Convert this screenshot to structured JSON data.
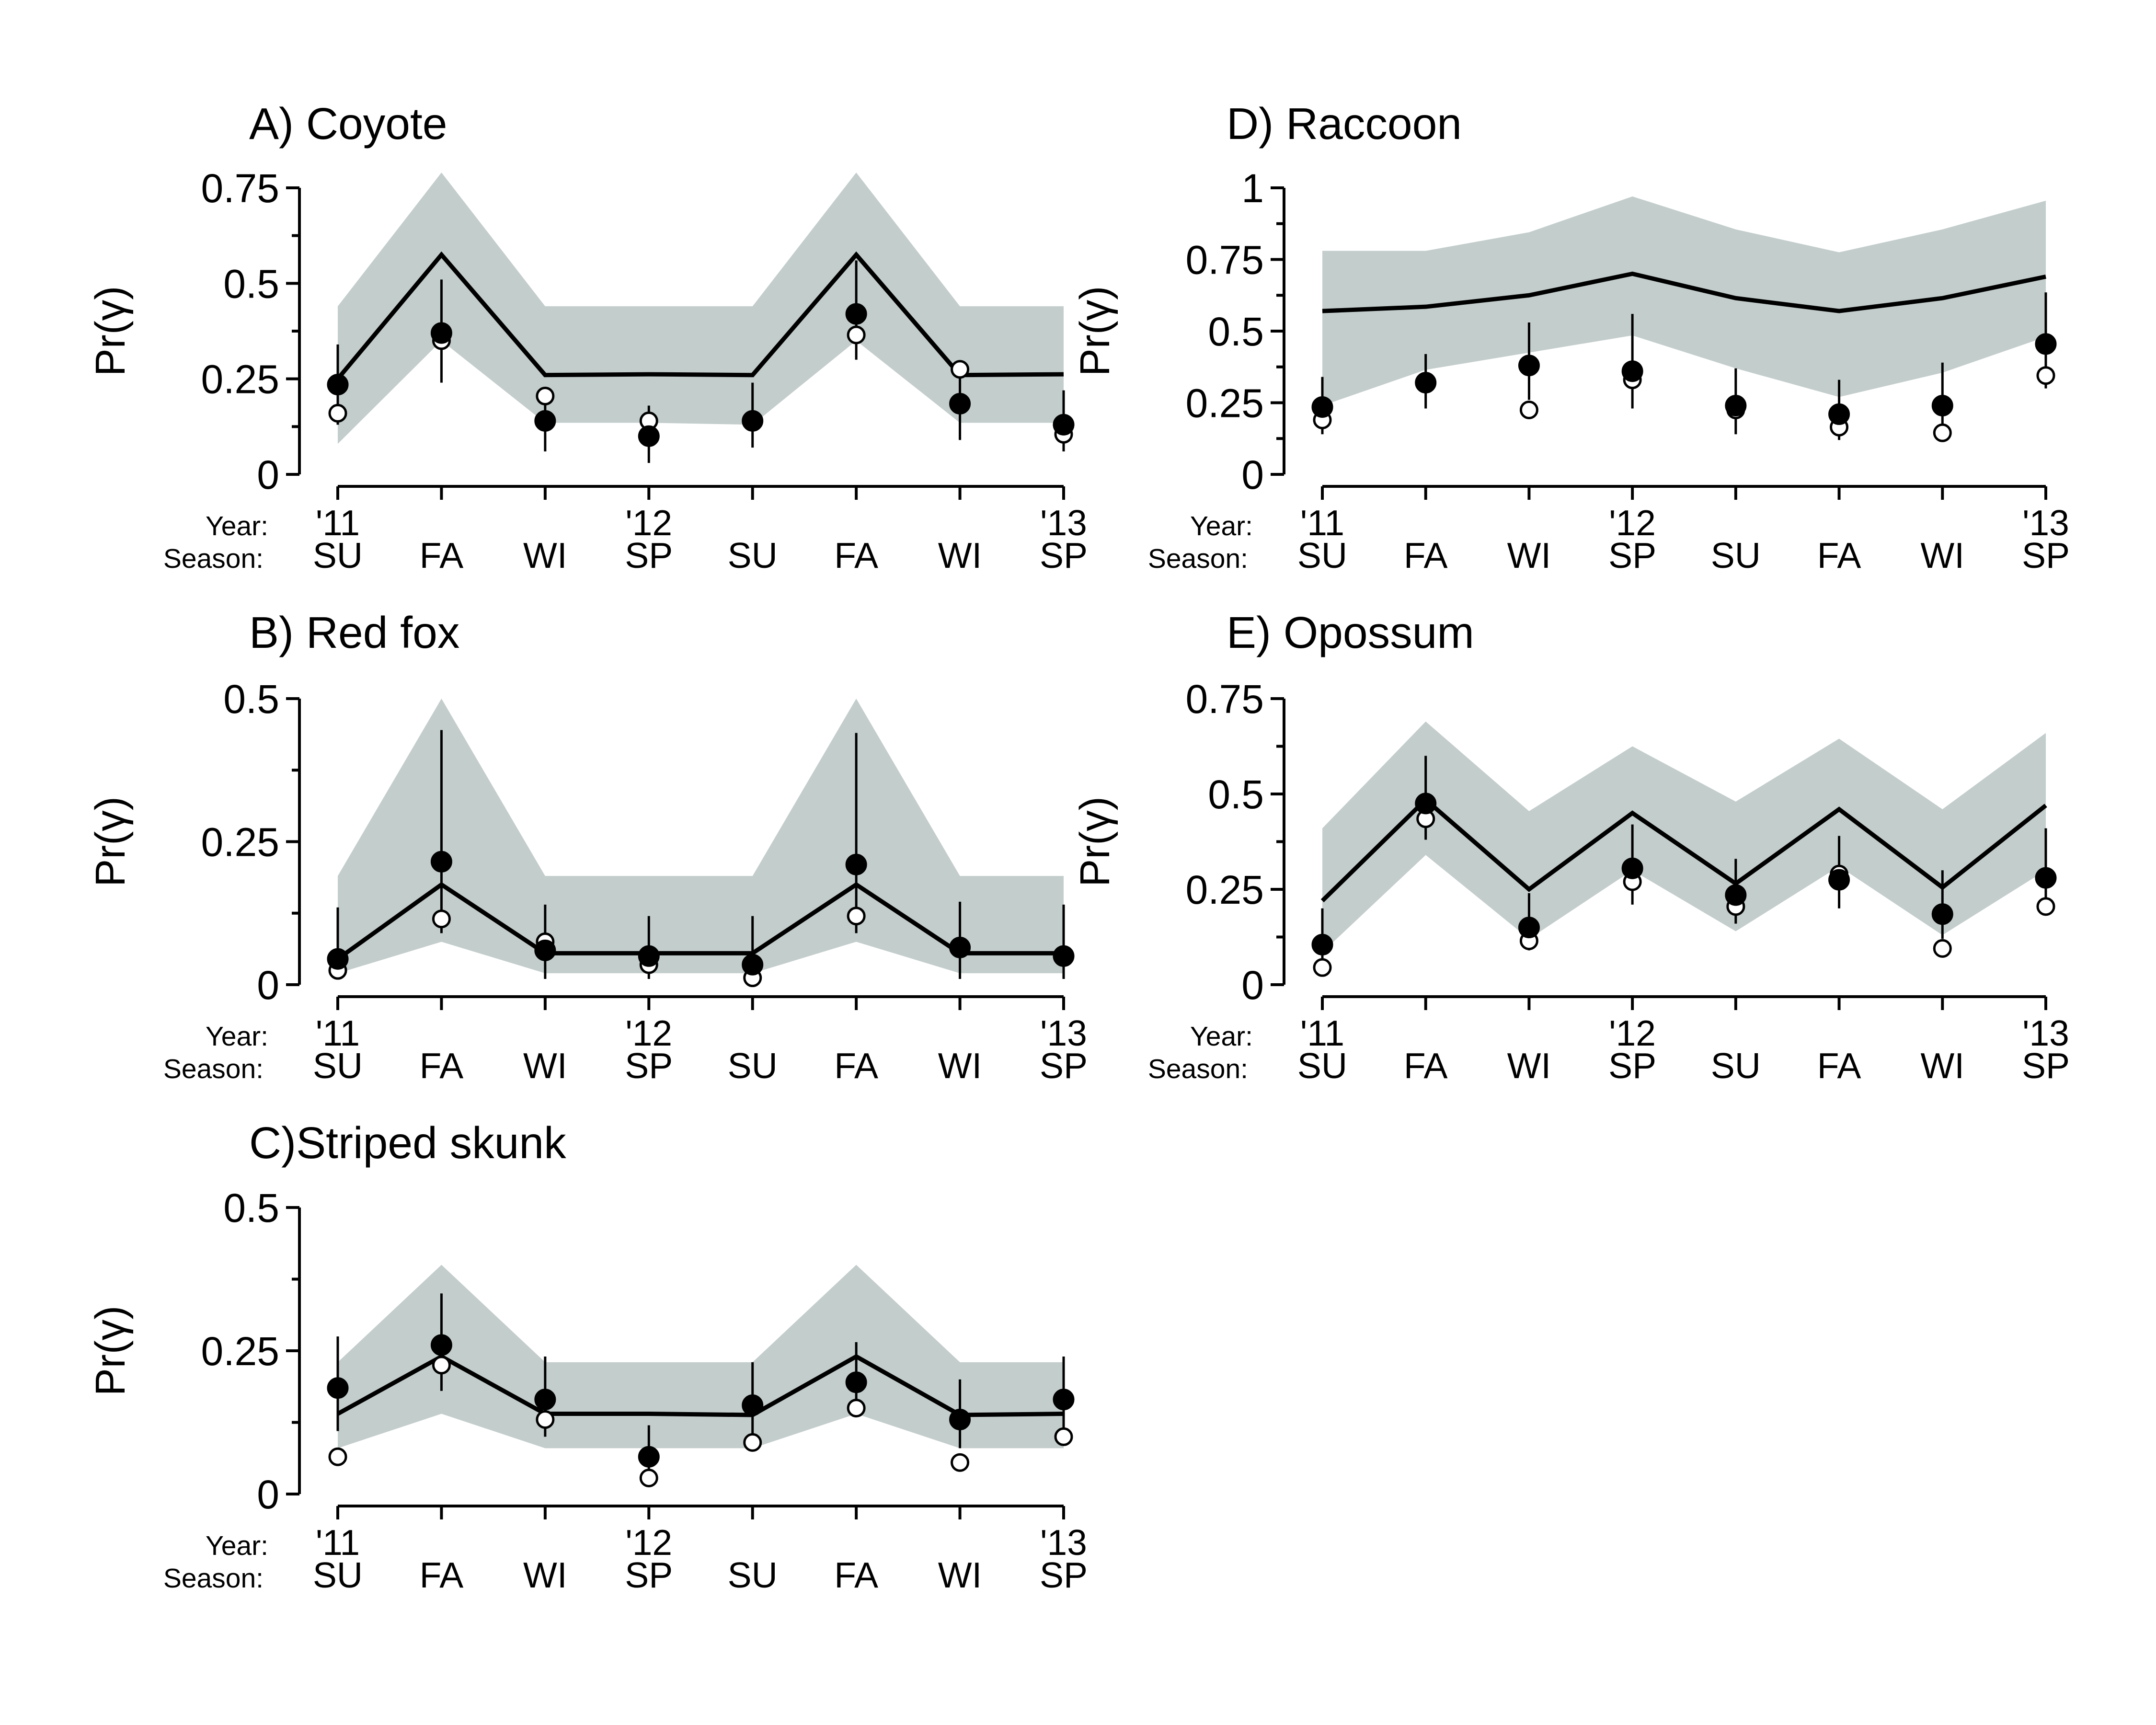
{
  "figure": {
    "row_labels": {
      "year": "Year:",
      "season": "Season:"
    },
    "seasons": [
      "SU",
      "FA",
      "WI",
      "SP",
      "SU",
      "FA",
      "WI",
      "SP"
    ],
    "years": [
      {
        "index": 0,
        "label": "'11"
      },
      {
        "index": 3,
        "label": "'12"
      },
      {
        "index": 7,
        "label": "'13"
      }
    ]
  },
  "chart_data": [
    {
      "id": "coyote",
      "type": "line",
      "title": "A) Coyote",
      "ylabel": "Pr(γ)",
      "ylim": [
        0,
        0.75
      ],
      "yticks": [
        0,
        0.25,
        0.5,
        0.75
      ],
      "ytick_labels": [
        "0",
        "0.25",
        "0.5",
        "0.75"
      ],
      "categories": [
        "SU",
        "FA",
        "WI",
        "SP",
        "SU",
        "FA",
        "WI",
        "SP"
      ],
      "estimate": [
        0.25,
        0.575,
        0.26,
        0.262,
        0.26,
        0.575,
        0.26,
        0.262
      ],
      "band_lower": [
        0.08,
        0.35,
        0.135,
        0.135,
        0.13,
        0.35,
        0.135,
        0.135
      ],
      "band_upper": [
        0.44,
        0.79,
        0.44,
        0.44,
        0.44,
        0.79,
        0.44,
        0.44
      ],
      "filled_points": [
        0.235,
        0.37,
        0.14,
        0.1,
        0.14,
        0.42,
        0.185,
        0.13
      ],
      "filled_ci": [
        [
          0.13,
          0.34
        ],
        [
          0.24,
          0.51
        ],
        [
          0.06,
          0.2
        ],
        [
          0.03,
          0.18
        ],
        [
          0.07,
          0.24
        ],
        [
          0.3,
          0.56
        ],
        [
          0.09,
          0.27
        ],
        [
          0.06,
          0.22
        ]
      ],
      "open_points": [
        0.16,
        0.35,
        0.205,
        0.14,
        null,
        0.365,
        0.275,
        0.105
      ]
    },
    {
      "id": "redfox",
      "type": "line",
      "title": "B) Red fox",
      "ylabel": "Pr(γ)",
      "ylim": [
        0,
        0.5
      ],
      "yticks": [
        0,
        0.25,
        0.5
      ],
      "ytick_labels": [
        "0",
        "0.25",
        "0.5"
      ],
      "categories": [
        "SU",
        "FA",
        "WI",
        "SP",
        "SU",
        "FA",
        "WI",
        "SP"
      ],
      "estimate": [
        0.045,
        0.175,
        0.055,
        0.055,
        0.055,
        0.175,
        0.055,
        0.055
      ],
      "band_lower": [
        0.02,
        0.075,
        0.02,
        0.02,
        0.02,
        0.075,
        0.02,
        0.02
      ],
      "band_upper": [
        0.19,
        0.5,
        0.19,
        0.19,
        0.19,
        0.5,
        0.19,
        0.19
      ],
      "filled_points": [
        0.045,
        0.215,
        0.06,
        0.05,
        0.035,
        0.21,
        0.065,
        0.05
      ],
      "filled_ci": [
        [
          0.01,
          0.135
        ],
        [
          0.09,
          0.445
        ],
        [
          0.01,
          0.14
        ],
        [
          0.01,
          0.12
        ],
        [
          0.01,
          0.12
        ],
        [
          0.09,
          0.44
        ],
        [
          0.01,
          0.145
        ],
        [
          0.01,
          0.14
        ]
      ],
      "open_points": [
        0.025,
        0.115,
        0.075,
        0.035,
        0.012,
        0.12,
        null,
        null
      ]
    },
    {
      "id": "skunk",
      "type": "line",
      "title": "C)Striped skunk",
      "ylabel": "Pr(γ)",
      "ylim": [
        0,
        0.5
      ],
      "yticks": [
        0,
        0.25,
        0.5
      ],
      "ytick_labels": [
        "0",
        "0.25",
        "0.5"
      ],
      "categories": [
        "SU",
        "FA",
        "WI",
        "SP",
        "SU",
        "FA",
        "WI",
        "SP"
      ],
      "estimate": [
        0.14,
        0.24,
        0.14,
        0.14,
        0.138,
        0.24,
        0.138,
        0.14
      ],
      "band_lower": [
        0.08,
        0.14,
        0.08,
        0.08,
        0.08,
        0.14,
        0.08,
        0.08
      ],
      "band_upper": [
        0.23,
        0.4,
        0.23,
        0.23,
        0.23,
        0.4,
        0.23,
        0.23
      ],
      "filled_points": [
        0.185,
        0.26,
        0.165,
        0.065,
        0.155,
        0.195,
        0.13,
        0.165
      ],
      "filled_ci": [
        [
          0.11,
          0.275
        ],
        [
          0.18,
          0.35
        ],
        [
          0.1,
          0.24
        ],
        [
          0.03,
          0.12
        ],
        [
          0.1,
          0.23
        ],
        [
          0.14,
          0.265
        ],
        [
          0.08,
          0.2
        ],
        [
          0.1,
          0.24
        ]
      ],
      "open_points": [
        0.065,
        0.225,
        0.13,
        0.028,
        0.09,
        0.15,
        0.055,
        0.1
      ]
    },
    {
      "id": "raccoon",
      "type": "line",
      "title": "D) Raccoon",
      "ylabel": "Pr(γ)",
      "ylim": [
        0,
        1
      ],
      "yticks": [
        0,
        0.25,
        0.5,
        0.75,
        1
      ],
      "ytick_labels": [
        "0",
        "0.25",
        "0.5",
        "0.75",
        "1"
      ],
      "categories": [
        "SU",
        "FA",
        "WI",
        "SP",
        "SU",
        "FA",
        "WI",
        "SP"
      ],
      "estimate": [
        0.57,
        0.585,
        0.625,
        0.7,
        0.615,
        0.57,
        0.615,
        0.69
      ],
      "band_lower": [
        0.24,
        0.365,
        0.425,
        0.485,
        0.37,
        0.27,
        0.355,
        0.48
      ],
      "band_upper": [
        0.78,
        0.78,
        0.845,
        0.97,
        0.855,
        0.775,
        0.855,
        0.955
      ],
      "filled_points": [
        0.235,
        0.32,
        0.38,
        0.36,
        0.24,
        0.21,
        0.24,
        0.455
      ],
      "filled_ci": [
        [
          0.14,
          0.34
        ],
        [
          0.23,
          0.42
        ],
        [
          0.26,
          0.53
        ],
        [
          0.23,
          0.56
        ],
        [
          0.14,
          0.37
        ],
        [
          0.12,
          0.33
        ],
        [
          0.14,
          0.39
        ],
        [
          0.3,
          0.635
        ]
      ],
      "open_points": [
        0.19,
        null,
        0.225,
        0.33,
        0.225,
        0.165,
        0.145,
        0.345
      ]
    },
    {
      "id": "opossum",
      "type": "line",
      "title": "E) Opossum",
      "ylabel": "Pr(γ)",
      "ylim": [
        0,
        0.75
      ],
      "yticks": [
        0,
        0.25,
        0.5,
        0.75
      ],
      "ytick_labels": [
        "0",
        "0.25",
        "0.5",
        "0.75"
      ],
      "categories": [
        "SU",
        "FA",
        "WI",
        "SP",
        "SU",
        "FA",
        "WI",
        "SP"
      ],
      "estimate": [
        0.22,
        0.485,
        0.25,
        0.45,
        0.265,
        0.46,
        0.255,
        0.47
      ],
      "band_lower": [
        0.085,
        0.34,
        0.12,
        0.3,
        0.14,
        0.31,
        0.13,
        0.3
      ],
      "band_upper": [
        0.41,
        0.69,
        0.455,
        0.625,
        0.48,
        0.645,
        0.46,
        0.66
      ],
      "filled_points": [
        0.105,
        0.475,
        0.15,
        0.305,
        0.235,
        0.275,
        0.185,
        0.28
      ],
      "filled_ci": [
        [
          0.05,
          0.2
        ],
        [
          0.38,
          0.6
        ],
        [
          0.09,
          0.24
        ],
        [
          0.21,
          0.42
        ],
        [
          0.16,
          0.33
        ],
        [
          0.2,
          0.39
        ],
        [
          0.12,
          0.3
        ],
        [
          0.19,
          0.41
        ]
      ],
      "open_points": [
        0.045,
        0.435,
        0.115,
        0.27,
        0.205,
        0.29,
        0.095,
        0.205
      ]
    }
  ]
}
